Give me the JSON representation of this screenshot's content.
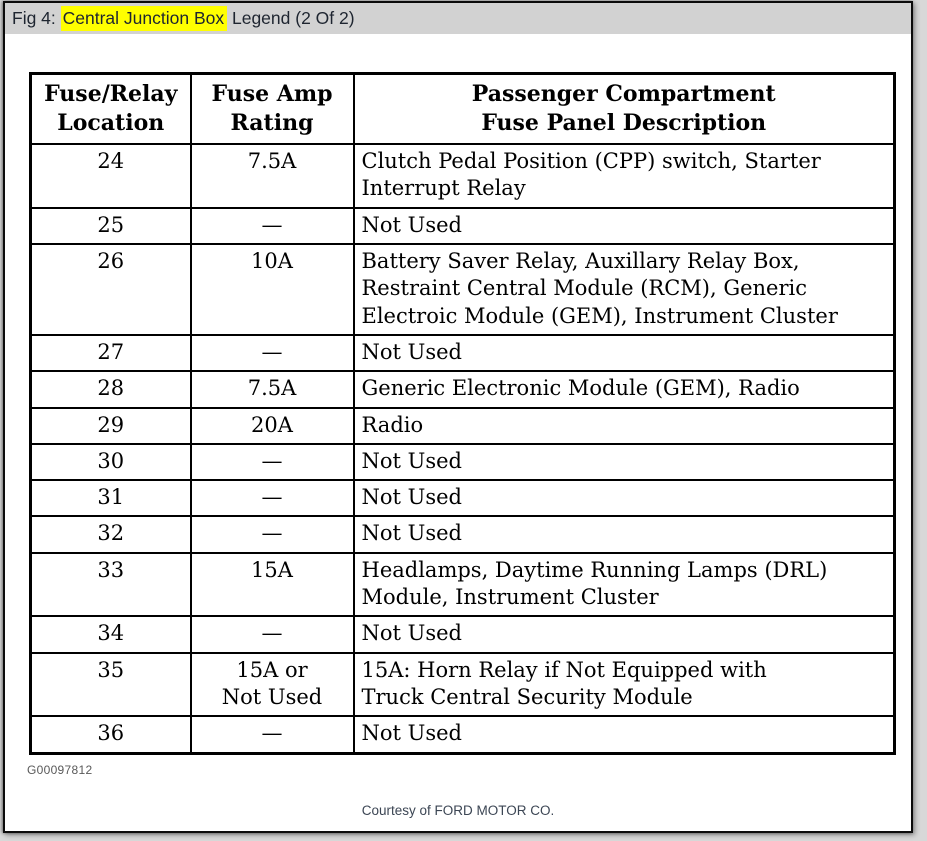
{
  "colors": {
    "highlight": "#ffff00",
    "titlebar_bg": "#d2d2d2",
    "table_border": "#000000",
    "page_bg": "#ffffff"
  },
  "header": {
    "prefix": "Fig 4: ",
    "highlight": "Central Junction Box",
    "suffix": " Legend (2 Of 2)"
  },
  "table": {
    "columns": [
      "Fuse/Relay\nLocation",
      "Fuse Amp\nRating",
      "Passenger Compartment\nFuse Panel Description"
    ],
    "rows": [
      {
        "location": "24",
        "rating": "7.5A",
        "description": "Clutch Pedal Position (CPP) switch, Starter\nInterrupt Relay"
      },
      {
        "location": "25",
        "rating": "—",
        "description": "Not Used"
      },
      {
        "location": "26",
        "rating": "10A",
        "description": "Battery Saver Relay, Auxillary Relay Box,\nRestraint Central Module (RCM), Generic\nElectroic Module (GEM), Instrument Cluster"
      },
      {
        "location": "27",
        "rating": "—",
        "description": "Not Used"
      },
      {
        "location": "28",
        "rating": "7.5A",
        "description": "Generic Electronic Module (GEM), Radio"
      },
      {
        "location": "29",
        "rating": "20A",
        "description": "Radio"
      },
      {
        "location": "30",
        "rating": "—",
        "description": "Not Used"
      },
      {
        "location": "31",
        "rating": "—",
        "description": "Not Used"
      },
      {
        "location": "32",
        "rating": "—",
        "description": "Not Used"
      },
      {
        "location": "33",
        "rating": "15A",
        "description": "Headlamps, Daytime Running Lamps (DRL)\nModule, Instrument Cluster"
      },
      {
        "location": "34",
        "rating": "—",
        "description": "Not Used"
      },
      {
        "location": "35",
        "rating": "15A or\nNot Used",
        "description": "15A: Horn Relay if Not Equipped with\nTruck Central Security Module"
      },
      {
        "location": "36",
        "rating": "—",
        "description": "Not Used"
      }
    ]
  },
  "figure_id": "G00097812",
  "footer": {
    "courtesy": "Courtesy of FORD MOTOR CO."
  }
}
